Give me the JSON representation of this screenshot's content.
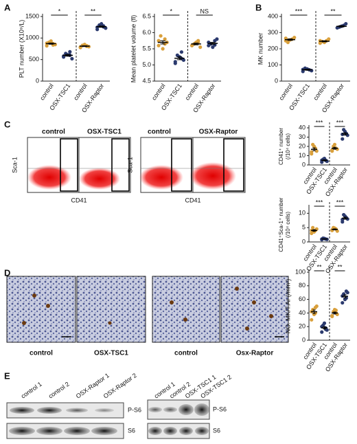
{
  "labels": {
    "panels": [
      "A",
      "B",
      "C",
      "D",
      "E"
    ],
    "flow_titles": [
      "control",
      "OSX-TSC1",
      "control",
      "OSX-Raptor"
    ],
    "flow_x": [
      "CD41",
      "CD41"
    ],
    "flow_y": [
      "Sca-1",
      "Sca-1"
    ],
    "histo_captions": [
      "control",
      "OSX-TSC1",
      "control",
      "Osx-Raptor"
    ],
    "blot_left_lanes": [
      "control 1",
      "control 2",
      "OSX-Raptor 1",
      "OSX-Raptor 2"
    ],
    "blot_right_lanes": [
      "control 1",
      "control 2",
      "OSX-TSC1 1",
      "OSX-TSC1 2"
    ],
    "blot_left_rows": [
      "P-S6",
      "S6"
    ],
    "blot_right_rows": [
      "P-S6",
      "S6"
    ]
  },
  "chart_data": [
    {
      "type": "dot",
      "ylabel": [
        "PLT number (X10⁹/L)"
      ],
      "categories": [
        "control",
        "OSX-TSC1",
        "control",
        "OSX-Raptor"
      ],
      "colors": [
        "#d9a03c",
        "#2b3a6e",
        "#d9a03c",
        "#2b3a6e"
      ],
      "values": [
        [
          820,
          870,
          900,
          850,
          930,
          880,
          840
        ],
        [
          560,
          600,
          640,
          520,
          610,
          580,
          680
        ],
        [
          780,
          810,
          830,
          800,
          850,
          790,
          820
        ],
        [
          1200,
          1260,
          1300,
          1230,
          1330,
          1250,
          1280
        ]
      ],
      "ylim": [
        0,
        1500
      ],
      "yticks": [
        0,
        500,
        1000,
        1500
      ],
      "annotations": [
        "*",
        "**"
      ]
    },
    {
      "type": "dot",
      "ylabel": [
        "Mean platelet volume (fl)"
      ],
      "categories": [
        "control",
        "OSX-TSC1",
        "control",
        "OSX-Raptor"
      ],
      "colors": [
        "#d9a03c",
        "#2b3a6e",
        "#d9a03c",
        "#2b3a6e"
      ],
      "values": [
        [
          5.6,
          5.8,
          5.9,
          5.7,
          5.5,
          5.75,
          5.65
        ],
        [
          5.1,
          5.2,
          5.3,
          5.15,
          5.25,
          5.05,
          5.4
        ],
        [
          5.6,
          5.7,
          5.65,
          5.55,
          5.7,
          5.6,
          5.75
        ],
        [
          5.6,
          5.75,
          5.65,
          5.8,
          5.55,
          5.7,
          5.62
        ]
      ],
      "ylim": [
        4.5,
        6.5
      ],
      "yticks": [
        {
          "value": 4.5,
          "label": "4.5"
        },
        {
          "value": 5,
          "label": "5.0"
        },
        {
          "value": 5.5,
          "label": "5.5"
        },
        {
          "value": 6,
          "label": "6.0"
        },
        {
          "value": 6.5,
          "label": "6.5"
        }
      ],
      "annotations": [
        "*",
        "NS"
      ]
    },
    {
      "type": "dot",
      "ylabel": [
        "MK number"
      ],
      "categories": [
        "control",
        "OSX-TSC1",
        "control",
        "OSX-Raptor"
      ],
      "colors": [
        "#d9a03c",
        "#2b3a6e",
        "#d9a03c",
        "#2b3a6e"
      ],
      "values": [
        [
          250,
          260,
          240,
          270,
          255,
          265
        ],
        [
          60,
          70,
          80,
          65,
          75,
          72
        ],
        [
          235,
          250,
          245,
          260,
          240,
          250
        ],
        [
          330,
          345,
          335,
          355,
          340,
          330
        ]
      ],
      "ylim": [
        0,
        400
      ],
      "yticks": [
        0,
        100,
        200,
        300,
        400
      ],
      "annotations": [
        "***",
        "**"
      ]
    },
    {
      "type": "dot",
      "ylabel": [
        "CD41⁺ number",
        "(/10⁴ cells)"
      ],
      "categories": [
        "control",
        "OSX-TSC1",
        "control",
        "OSX-Raptor"
      ],
      "colors": [
        "#d9a03c",
        "#2b3a6e",
        "#d9a03c",
        "#2b3a6e"
      ],
      "values": [
        [
          12,
          18,
          22,
          15,
          20,
          14
        ],
        [
          3,
          5,
          6,
          4,
          7,
          5
        ],
        [
          15,
          18,
          20,
          17,
          22,
          16
        ],
        [
          28,
          34,
          38,
          32,
          36,
          33
        ]
      ],
      "ylim": [
        0,
        40
      ],
      "yticks": [
        0,
        10,
        20,
        30,
        40
      ],
      "annotations": [
        "***",
        "***"
      ]
    },
    {
      "type": "dot",
      "ylabel": [
        "CD41⁺Sca-1⁺ number",
        "(/10⁴ cells)"
      ],
      "categories": [
        "control",
        "OSX-TSC1",
        "control",
        "OSX-Raptor"
      ],
      "colors": [
        "#d9a03c",
        "#2b3a6e",
        "#d9a03c",
        "#2b3a6e"
      ],
      "values": [
        [
          3,
          4,
          5,
          4.5,
          3.5,
          4
        ],
        [
          0.8,
          1,
          1.3,
          0.9,
          1.2,
          1
        ],
        [
          4,
          4.5,
          5,
          3.8,
          4.8,
          4.2
        ],
        [
          7,
          8.5,
          9.5,
          8,
          9,
          7.8
        ]
      ],
      "ylim": [
        0,
        12
      ],
      "yticks": [
        0,
        5,
        10
      ],
      "annotations": [
        "***",
        "***"
      ]
    },
    {
      "type": "dot",
      "ylabel": [
        "NO. MK/T.Ar (/mm²)"
      ],
      "categories": [
        "control",
        "OSX-TSC1",
        "control",
        "OSX-Raptor"
      ],
      "colors": [
        "#d9a03c",
        "#2b3a6e",
        "#d9a03c",
        "#2b3a6e"
      ],
      "values": [
        [
          30,
          40,
          45,
          50,
          38,
          42,
          48
        ],
        [
          12,
          18,
          22,
          15,
          25,
          20,
          16
        ],
        [
          35,
          40,
          42,
          38,
          45,
          36,
          44
        ],
        [
          55,
          62,
          68,
          70,
          60,
          65,
          72
        ]
      ],
      "ylim": [
        0,
        100
      ],
      "yticks": [
        0,
        20,
        40,
        60,
        80,
        100
      ],
      "annotations": [
        "**",
        "**"
      ]
    }
  ]
}
